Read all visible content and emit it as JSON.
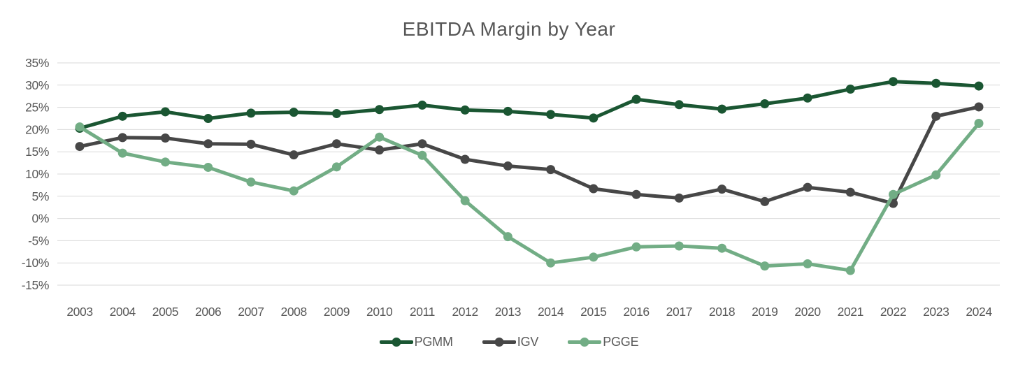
{
  "title": "EBITDA Margin by Year",
  "colors": {
    "pgmm": "#1a5632",
    "igv": "#474747",
    "pgge": "#72ad85",
    "grid": "#d9d9d9",
    "text": "#595959"
  },
  "chart_data": {
    "type": "line",
    "title": "EBITDA Margin by Year",
    "x": [
      "2003",
      "2004",
      "2005",
      "2006",
      "2007",
      "2008",
      "2009",
      "2010",
      "2011",
      "2012",
      "2013",
      "2014",
      "2015",
      "2016",
      "2017",
      "2018",
      "2019",
      "2020",
      "2021",
      "2022",
      "2023",
      "2024"
    ],
    "series": [
      {
        "name": "PGMM",
        "color": "#1a5632",
        "values": [
          20.3,
          23.0,
          24.0,
          22.5,
          23.7,
          23.9,
          23.6,
          24.5,
          25.5,
          24.4,
          24.1,
          23.4,
          22.6,
          26.8,
          25.6,
          24.6,
          25.8,
          27.1,
          29.1,
          30.8,
          30.4,
          29.8
        ]
      },
      {
        "name": "IGV",
        "color": "#474747",
        "values": [
          16.2,
          18.2,
          18.1,
          16.8,
          16.7,
          14.3,
          16.8,
          15.4,
          16.8,
          13.3,
          11.8,
          11.0,
          6.7,
          5.4,
          4.6,
          6.6,
          3.8,
          7.0,
          5.9,
          3.4,
          23.0,
          25.1
        ]
      },
      {
        "name": "PGGE",
        "color": "#72ad85",
        "values": [
          20.6,
          14.7,
          12.7,
          11.5,
          8.2,
          6.2,
          11.6,
          18.3,
          14.2,
          4.0,
          -4.1,
          -10.0,
          -8.7,
          -6.4,
          -6.2,
          -6.7,
          -10.7,
          -10.2,
          -11.7,
          5.4,
          9.8,
          21.4
        ]
      }
    ],
    "ylim": [
      -15,
      35
    ],
    "ytick_step": 5,
    "y_ticks": [
      "35%",
      "30%",
      "25%",
      "20%",
      "15%",
      "10%",
      "5%",
      "0%",
      "-5%",
      "-10%",
      "-15%"
    ],
    "grid": "horizontal-only",
    "legend_position": "bottom"
  }
}
